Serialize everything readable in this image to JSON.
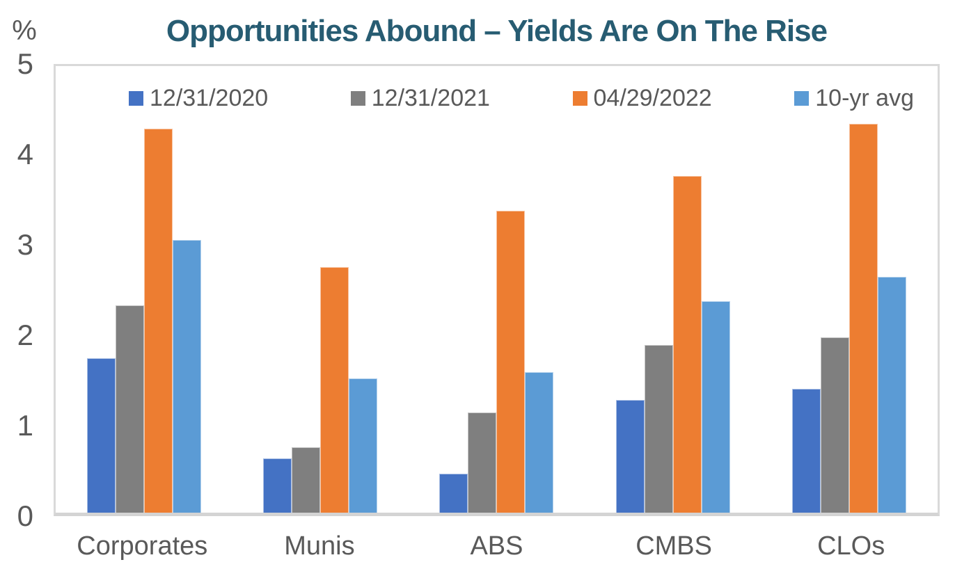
{
  "colors": {
    "title": "#275C72",
    "axis_text": "#595959",
    "plot_border": "#D9D9D9",
    "axis_line": "#D4D4D4",
    "background": "#FFFFFF"
  },
  "chart_data": {
    "type": "bar",
    "title": "Opportunities Abound – Yields Are On The Rise",
    "unit_label": "%",
    "xlabel": "",
    "ylabel": "%",
    "ylim": [
      0,
      5
    ],
    "yticks": [
      0,
      1,
      2,
      3,
      4,
      5
    ],
    "grid": false,
    "legend_position": "top-inside",
    "categories": [
      "Corporates",
      "Munis",
      "ABS",
      "CMBS",
      "CLOs"
    ],
    "series": [
      {
        "name": "12/31/2020",
        "color": "#4472C4",
        "values": [
          1.73,
          0.61,
          0.44,
          1.26,
          1.39
        ]
      },
      {
        "name": "12/31/2021",
        "color": "#7F7F7F",
        "values": [
          2.32,
          0.73,
          1.12,
          1.88,
          1.96
        ]
      },
      {
        "name": "04/29/2022",
        "color": "#ED7D31",
        "values": [
          4.3,
          2.75,
          3.38,
          3.77,
          4.35
        ]
      },
      {
        "name": "10-yr avg",
        "color": "#5B9BD5",
        "values": [
          3.05,
          1.5,
          1.57,
          2.37,
          2.64
        ]
      }
    ]
  }
}
